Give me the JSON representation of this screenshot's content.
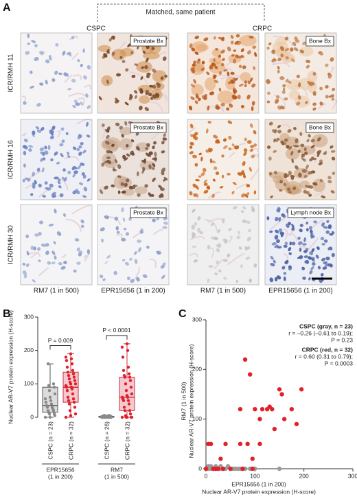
{
  "panel_a": {
    "label": "A",
    "bracket_label": "Matched, same patient",
    "groups": [
      "CSPC",
      "CRPC"
    ],
    "rows": [
      {
        "label": "ICR/RMH 11",
        "insets": [
          "Prostate Bx",
          "Bone Bx"
        ]
      },
      {
        "label": "ICR/RMH 16",
        "insets": [
          "Prostate Bx",
          "Bone Bx"
        ]
      },
      {
        "label": "ICR/RMH 30",
        "insets": [
          "Prostate Bx",
          "Lymph node Bx"
        ]
      }
    ],
    "columns": [
      "RM7 (1 in 500)",
      "EPR15656 (1 in 200)",
      "RM7 (1 in 500)",
      "EPR15656 (1 in 200)"
    ]
  },
  "chart_data": [
    {
      "type": "box",
      "label": "B",
      "ylabel": "Nuclear AR-V7 protein expression (H-score)",
      "ylim": [
        0,
        300
      ],
      "yticks": [
        0,
        100,
        200,
        300
      ],
      "groups": [
        {
          "name": "EPR15656",
          "subname": "(1 in 200)"
        },
        {
          "name": "RM7",
          "subname": "(1 in 500)"
        }
      ],
      "categories": [
        "CSPC (n = 23)",
        "CRPC (n = 32)",
        "CSPC (n = 26)",
        "CRPC (n = 32)"
      ],
      "boxes": [
        {
          "min": 0,
          "q1": 15,
          "median": 35,
          "q3": 90,
          "max": 160,
          "color": "#555555",
          "fill": "#dcdcdc",
          "point_color": "#8a8a8a",
          "points": [
            0,
            0,
            5,
            10,
            10,
            15,
            20,
            20,
            25,
            30,
            30,
            35,
            40,
            45,
            50,
            55,
            60,
            70,
            80,
            90,
            95,
            100,
            160
          ]
        },
        {
          "min": 0,
          "q1": 45,
          "median": 90,
          "q3": 135,
          "max": 190,
          "color": "#c8323c",
          "fill": "#f5c9cf",
          "point_color": "#e0202a",
          "points": [
            0,
            5,
            10,
            20,
            30,
            40,
            45,
            50,
            55,
            60,
            70,
            80,
            85,
            90,
            90,
            95,
            100,
            100,
            105,
            110,
            115,
            120,
            125,
            130,
            135,
            140,
            150,
            160,
            170,
            175,
            180,
            190
          ]
        },
        {
          "min": 0,
          "q1": 0,
          "median": 2,
          "q3": 3,
          "max": 5,
          "color": "#555555",
          "fill": "#dcdcdc",
          "point_color": "#8a8a8a",
          "points": [
            0,
            0,
            0,
            0,
            0,
            0,
            0,
            0,
            0,
            0,
            0,
            0,
            0,
            0,
            2,
            2,
            2,
            2,
            2,
            2,
            5,
            5,
            5,
            5,
            5,
            5
          ]
        },
        {
          "min": 0,
          "q1": 20,
          "median": 60,
          "q3": 120,
          "max": 220,
          "color": "#c8323c",
          "fill": "#f5c9cf",
          "point_color": "#e0202a",
          "points": [
            0,
            0,
            0,
            0,
            0,
            5,
            10,
            20,
            20,
            30,
            40,
            50,
            50,
            55,
            60,
            60,
            65,
            70,
            80,
            90,
            100,
            110,
            120,
            120,
            125,
            130,
            140,
            150,
            180,
            200,
            210,
            220
          ]
        }
      ],
      "annotations": [
        {
          "text": "P = 0.009",
          "from": 0,
          "to": 1
        },
        {
          "text": "P < 0.0001",
          "from": 2,
          "to": 3
        }
      ]
    },
    {
      "type": "scatter",
      "label": "C",
      "xlabel_lines": [
        "EPR15656 (1 in 200)",
        "Nuclear  AR-V7 protein expression (H-score)"
      ],
      "ylabel_lines": [
        "RM7 (1 in 500)",
        "Nuclear AR-V7 protein expression (H-score)"
      ],
      "xlim": [
        0,
        300
      ],
      "ylim": [
        0,
        300
      ],
      "xticks": [
        0,
        100,
        200,
        300
      ],
      "yticks": [
        0,
        100,
        200,
        300
      ],
      "series": [
        {
          "name": "CSPC",
          "color": "#9a9a9a",
          "x": [
            0,
            5,
            10,
            15,
            20,
            25,
            30,
            35,
            40,
            45,
            50,
            55,
            60,
            65,
            70,
            80,
            90,
            100,
            150,
            10,
            20,
            30,
            5
          ],
          "y": [
            0,
            0,
            0,
            0,
            0,
            0,
            0,
            0,
            0,
            5,
            0,
            0,
            0,
            0,
            0,
            0,
            0,
            0,
            0,
            5,
            5,
            5,
            5
          ]
        },
        {
          "name": "CRPC",
          "color": "#e3202a",
          "x": [
            0,
            5,
            10,
            15,
            20,
            25,
            30,
            35,
            40,
            50,
            70,
            70,
            75,
            80,
            85,
            90,
            95,
            95,
            100,
            110,
            110,
            115,
            125,
            130,
            135,
            140,
            150,
            155,
            160,
            175,
            185,
            195
          ],
          "y": [
            0,
            50,
            50,
            0,
            0,
            0,
            20,
            0,
            50,
            0,
            50,
            120,
            0,
            220,
            50,
            190,
            20,
            0,
            120,
            50,
            100,
            120,
            120,
            125,
            120,
            80,
            160,
            150,
            100,
            120,
            90,
            160
          ]
        }
      ],
      "notes": [
        {
          "title": "CSPC (gray, n = 23)",
          "lines": [
            "r = –0.26 (–0.61 to 0.19);",
            "P = 0.23"
          ]
        },
        {
          "title": "CRPC (red, n = 32)",
          "lines": [
            "r = 0.60 (0.31 to 0.79);",
            "P = 0.0003"
          ]
        }
      ]
    }
  ]
}
